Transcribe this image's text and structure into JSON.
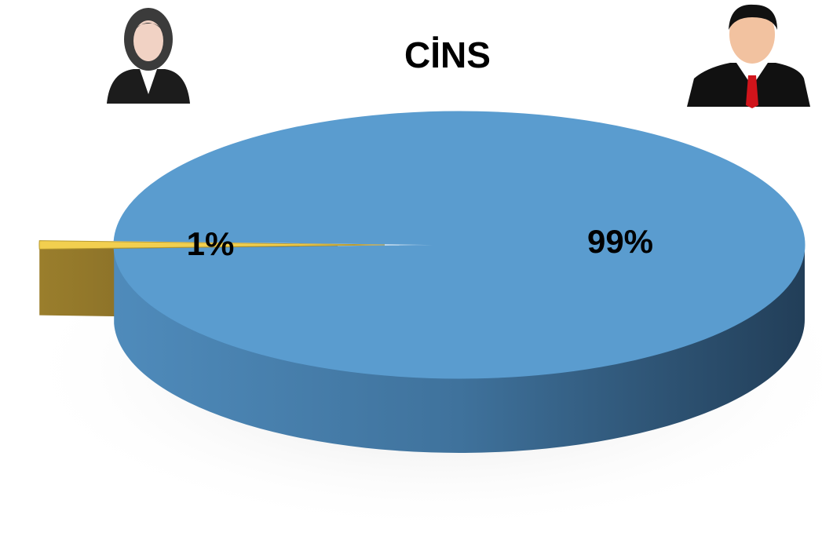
{
  "chart_data": {
    "type": "pie",
    "title": "CİNS",
    "values": [
      1,
      99
    ],
    "value_labels": [
      "1%",
      "99%"
    ],
    "colors": [
      "#f2cf4f",
      "#5a9ccf"
    ],
    "exploded": [
      true,
      false
    ]
  }
}
